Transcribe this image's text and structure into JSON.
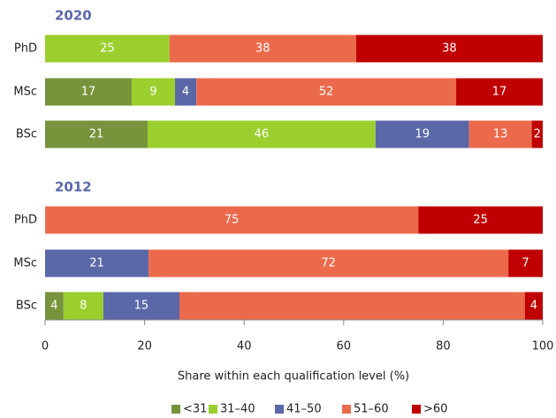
{
  "chart_data": {
    "type": "stacked-bar-horizontal",
    "xlabel": "Share within each qualification level (%)",
    "xlim": [
      0,
      100
    ],
    "xticks": [
      0,
      20,
      40,
      60,
      80,
      100
    ],
    "legend": "bottom",
    "series": [
      {
        "name": "<31",
        "color": "#77933c"
      },
      {
        "name": "31–40",
        "color": "#9bcf2e"
      },
      {
        "name": "41–50",
        "color": "#5a68a8"
      },
      {
        "name": "51–60",
        "color": "#ec6a4c"
      },
      {
        "name": ">60",
        "color": "#c00000"
      }
    ],
    "panels": [
      {
        "title": "2020",
        "categories": [
          "PhD",
          "MSc",
          "BSc"
        ],
        "values": [
          [
            null,
            17.4,
            20.6
          ],
          [
            25,
            8.7,
            45.8
          ],
          [
            null,
            4.3,
            18.8
          ],
          [
            37.5,
            52.2,
            12.6
          ],
          [
            37.5,
            17.4,
            2.2
          ]
        ],
        "value_labels": [
          [
            null,
            "17",
            "21"
          ],
          [
            "25",
            "9",
            "46"
          ],
          [
            null,
            "4",
            "19"
          ],
          [
            "38",
            "52",
            "13"
          ],
          [
            "38",
            "17",
            "2"
          ]
        ]
      },
      {
        "title": "2012",
        "categories": [
          "PhD",
          "MSc",
          "BSc"
        ],
        "values": [
          [
            null,
            null,
            3.7
          ],
          [
            null,
            null,
            8
          ],
          [
            null,
            20.8,
            15.3
          ],
          [
            75,
            72.3,
            69.4
          ],
          [
            25,
            6.9,
            3.6
          ]
        ],
        "value_labels": [
          [
            null,
            null,
            "4"
          ],
          [
            null,
            null,
            "8"
          ],
          [
            null,
            "21",
            "15"
          ],
          [
            "75",
            "72",
            null
          ],
          [
            "25",
            "7",
            "4"
          ]
        ]
      }
    ]
  }
}
